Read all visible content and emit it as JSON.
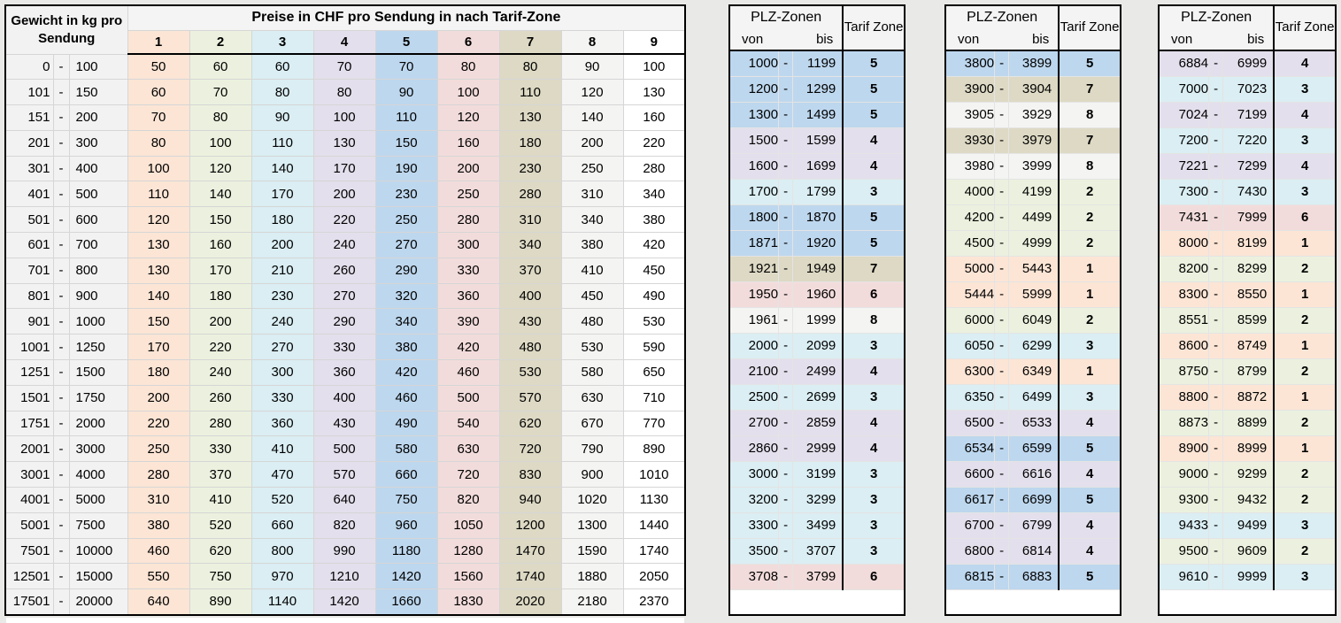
{
  "range_separator": "-",
  "zone_colors": {
    "1": "#FCE5D5",
    "2": "#EBF1DE",
    "3": "#DAEEF3",
    "4": "#E3DFEC",
    "5": "#BDD7EE",
    "6": "#F2DCDB",
    "7": "#DDD9C4",
    "8": "#F4F4F3",
    "9": "#FFFFFF"
  },
  "price_table": {
    "weight_header": "Gewicht in kg pro Sendung",
    "price_header": "Preise in CHF pro Sendung in nach Tarif-Zone",
    "zone_columns": [
      "1",
      "2",
      "3",
      "4",
      "5",
      "6",
      "7",
      "8",
      "9"
    ],
    "rows": [
      {
        "from": "0",
        "to": "100",
        "prices": [
          50,
          60,
          60,
          70,
          70,
          80,
          80,
          90,
          100
        ]
      },
      {
        "from": "101",
        "to": "150",
        "prices": [
          60,
          70,
          80,
          80,
          90,
          100,
          110,
          120,
          130
        ]
      },
      {
        "from": "151",
        "to": "200",
        "prices": [
          70,
          80,
          90,
          100,
          110,
          120,
          130,
          140,
          160
        ]
      },
      {
        "from": "201",
        "to": "300",
        "prices": [
          80,
          100,
          110,
          130,
          150,
          160,
          180,
          200,
          220
        ]
      },
      {
        "from": "301",
        "to": "400",
        "prices": [
          100,
          120,
          140,
          170,
          190,
          200,
          230,
          250,
          280
        ]
      },
      {
        "from": "401",
        "to": "500",
        "prices": [
          110,
          140,
          170,
          200,
          230,
          250,
          280,
          310,
          340
        ]
      },
      {
        "from": "501",
        "to": "600",
        "prices": [
          120,
          150,
          180,
          220,
          250,
          280,
          310,
          340,
          380
        ]
      },
      {
        "from": "601",
        "to": "700",
        "prices": [
          130,
          160,
          200,
          240,
          270,
          300,
          340,
          380,
          420
        ]
      },
      {
        "from": "701",
        "to": "800",
        "prices": [
          130,
          170,
          210,
          260,
          290,
          330,
          370,
          410,
          450
        ]
      },
      {
        "from": "801",
        "to": "900",
        "prices": [
          140,
          180,
          230,
          270,
          320,
          360,
          400,
          450,
          490
        ]
      },
      {
        "from": "901",
        "to": "1000",
        "prices": [
          150,
          200,
          240,
          290,
          340,
          390,
          430,
          480,
          530
        ]
      },
      {
        "from": "1001",
        "to": "1250",
        "prices": [
          170,
          220,
          270,
          330,
          380,
          420,
          480,
          530,
          590
        ]
      },
      {
        "from": "1251",
        "to": "1500",
        "prices": [
          180,
          240,
          300,
          360,
          420,
          460,
          530,
          580,
          650
        ]
      },
      {
        "from": "1501",
        "to": "1750",
        "prices": [
          200,
          260,
          330,
          400,
          460,
          500,
          570,
          630,
          710
        ]
      },
      {
        "from": "1751",
        "to": "2000",
        "prices": [
          220,
          280,
          360,
          430,
          490,
          540,
          620,
          670,
          770
        ]
      },
      {
        "from": "2001",
        "to": "3000",
        "prices": [
          250,
          330,
          410,
          500,
          580,
          630,
          720,
          790,
          890
        ]
      },
      {
        "from": "3001",
        "to": "4000",
        "prices": [
          280,
          370,
          470,
          570,
          660,
          720,
          830,
          900,
          1010
        ]
      },
      {
        "from": "4001",
        "to": "5000",
        "prices": [
          310,
          410,
          520,
          640,
          750,
          820,
          940,
          1020,
          1130
        ]
      },
      {
        "from": "5001",
        "to": "7500",
        "prices": [
          380,
          520,
          660,
          820,
          960,
          1050,
          1200,
          1300,
          1440
        ]
      },
      {
        "from": "7501",
        "to": "10000",
        "prices": [
          460,
          620,
          800,
          990,
          1180,
          1280,
          1470,
          1590,
          1740
        ]
      },
      {
        "from": "12501",
        "to": "15000",
        "prices": [
          550,
          750,
          970,
          1210,
          1420,
          1560,
          1740,
          1880,
          2050
        ]
      },
      {
        "from": "17501",
        "to": "20000",
        "prices": [
          640,
          890,
          1140,
          1420,
          1660,
          1830,
          2020,
          2180,
          2370
        ]
      }
    ]
  },
  "plz_tables": [
    {
      "title": "PLZ-Zonen",
      "von_label": "von",
      "bis_label": "bis",
      "tarif_label": "Tarif Zone",
      "rows": [
        {
          "von": "1000",
          "bis": "1199",
          "zone": "5"
        },
        {
          "von": "1200",
          "bis": "1299",
          "zone": "5"
        },
        {
          "von": "1300",
          "bis": "1499",
          "zone": "5"
        },
        {
          "von": "1500",
          "bis": "1599",
          "zone": "4"
        },
        {
          "von": "1600",
          "bis": "1699",
          "zone": "4"
        },
        {
          "von": "1700",
          "bis": "1799",
          "zone": "3"
        },
        {
          "von": "1800",
          "bis": "1870",
          "zone": "5"
        },
        {
          "von": "1871",
          "bis": "1920",
          "zone": "5"
        },
        {
          "von": "1921",
          "bis": "1949",
          "zone": "7"
        },
        {
          "von": "1950",
          "bis": "1960",
          "zone": "6"
        },
        {
          "von": "1961",
          "bis": "1999",
          "zone": "8"
        },
        {
          "von": "2000",
          "bis": "2099",
          "zone": "3"
        },
        {
          "von": "2100",
          "bis": "2499",
          "zone": "4"
        },
        {
          "von": "2500",
          "bis": "2699",
          "zone": "3"
        },
        {
          "von": "2700",
          "bis": "2859",
          "zone": "4"
        },
        {
          "von": "2860",
          "bis": "2999",
          "zone": "4"
        },
        {
          "von": "3000",
          "bis": "3199",
          "zone": "3"
        },
        {
          "von": "3200",
          "bis": "3299",
          "zone": "3"
        },
        {
          "von": "3300",
          "bis": "3499",
          "zone": "3"
        },
        {
          "von": "3500",
          "bis": "3707",
          "zone": "3"
        },
        {
          "von": "3708",
          "bis": "3799",
          "zone": "6"
        }
      ]
    },
    {
      "title": "PLZ-Zonen",
      "von_label": "von",
      "bis_label": "bis",
      "tarif_label": "Tarif Zone",
      "rows": [
        {
          "von": "3800",
          "bis": "3899",
          "zone": "5"
        },
        {
          "von": "3900",
          "bis": "3904",
          "zone": "7"
        },
        {
          "von": "3905",
          "bis": "3929",
          "zone": "8"
        },
        {
          "von": "3930",
          "bis": "3979",
          "zone": "7"
        },
        {
          "von": "3980",
          "bis": "3999",
          "zone": "8"
        },
        {
          "von": "4000",
          "bis": "4199",
          "zone": "2"
        },
        {
          "von": "4200",
          "bis": "4499",
          "zone": "2"
        },
        {
          "von": "4500",
          "bis": "4999",
          "zone": "2"
        },
        {
          "von": "5000",
          "bis": "5443",
          "zone": "1"
        },
        {
          "von": "5444",
          "bis": "5999",
          "zone": "1"
        },
        {
          "von": "6000",
          "bis": "6049",
          "zone": "2"
        },
        {
          "von": "6050",
          "bis": "6299",
          "zone": "3"
        },
        {
          "von": "6300",
          "bis": "6349",
          "zone": "1"
        },
        {
          "von": "6350",
          "bis": "6499",
          "zone": "3"
        },
        {
          "von": "6500",
          "bis": "6533",
          "zone": "4"
        },
        {
          "von": "6534",
          "bis": "6599",
          "zone": "5"
        },
        {
          "von": "6600",
          "bis": "6616",
          "zone": "4"
        },
        {
          "von": "6617",
          "bis": "6699",
          "zone": "5"
        },
        {
          "von": "6700",
          "bis": "6799",
          "zone": "4"
        },
        {
          "von": "6800",
          "bis": "6814",
          "zone": "4"
        },
        {
          "von": "6815",
          "bis": "6883",
          "zone": "5"
        }
      ]
    },
    {
      "title": "PLZ-Zonen",
      "von_label": "von",
      "bis_label": "bis",
      "tarif_label": "Tarif Zone",
      "rows": [
        {
          "von": "6884",
          "bis": "6999",
          "zone": "4"
        },
        {
          "von": "7000",
          "bis": "7023",
          "zone": "3"
        },
        {
          "von": "7024",
          "bis": "7199",
          "zone": "4"
        },
        {
          "von": "7200",
          "bis": "7220",
          "zone": "3"
        },
        {
          "von": "7221",
          "bis": "7299",
          "zone": "4"
        },
        {
          "von": "7300",
          "bis": "7430",
          "zone": "3"
        },
        {
          "von": "7431",
          "bis": "7999",
          "zone": "6"
        },
        {
          "von": "8000",
          "bis": "8199",
          "zone": "1"
        },
        {
          "von": "8200",
          "bis": "8299",
          "zone": "2"
        },
        {
          "von": "8300",
          "bis": "8550",
          "zone": "1"
        },
        {
          "von": "8551",
          "bis": "8599",
          "zone": "2"
        },
        {
          "von": "8600",
          "bis": "8749",
          "zone": "1"
        },
        {
          "von": "8750",
          "bis": "8799",
          "zone": "2"
        },
        {
          "von": "8800",
          "bis": "8872",
          "zone": "1"
        },
        {
          "von": "8873",
          "bis": "8899",
          "zone": "2"
        },
        {
          "von": "8900",
          "bis": "8999",
          "zone": "1"
        },
        {
          "von": "9000",
          "bis": "9299",
          "zone": "2"
        },
        {
          "von": "9300",
          "bis": "9432",
          "zone": "2"
        },
        {
          "von": "9433",
          "bis": "9499",
          "zone": "3"
        },
        {
          "von": "9500",
          "bis": "9609",
          "zone": "2"
        },
        {
          "von": "9610",
          "bis": "9999",
          "zone": "3"
        }
      ]
    }
  ]
}
